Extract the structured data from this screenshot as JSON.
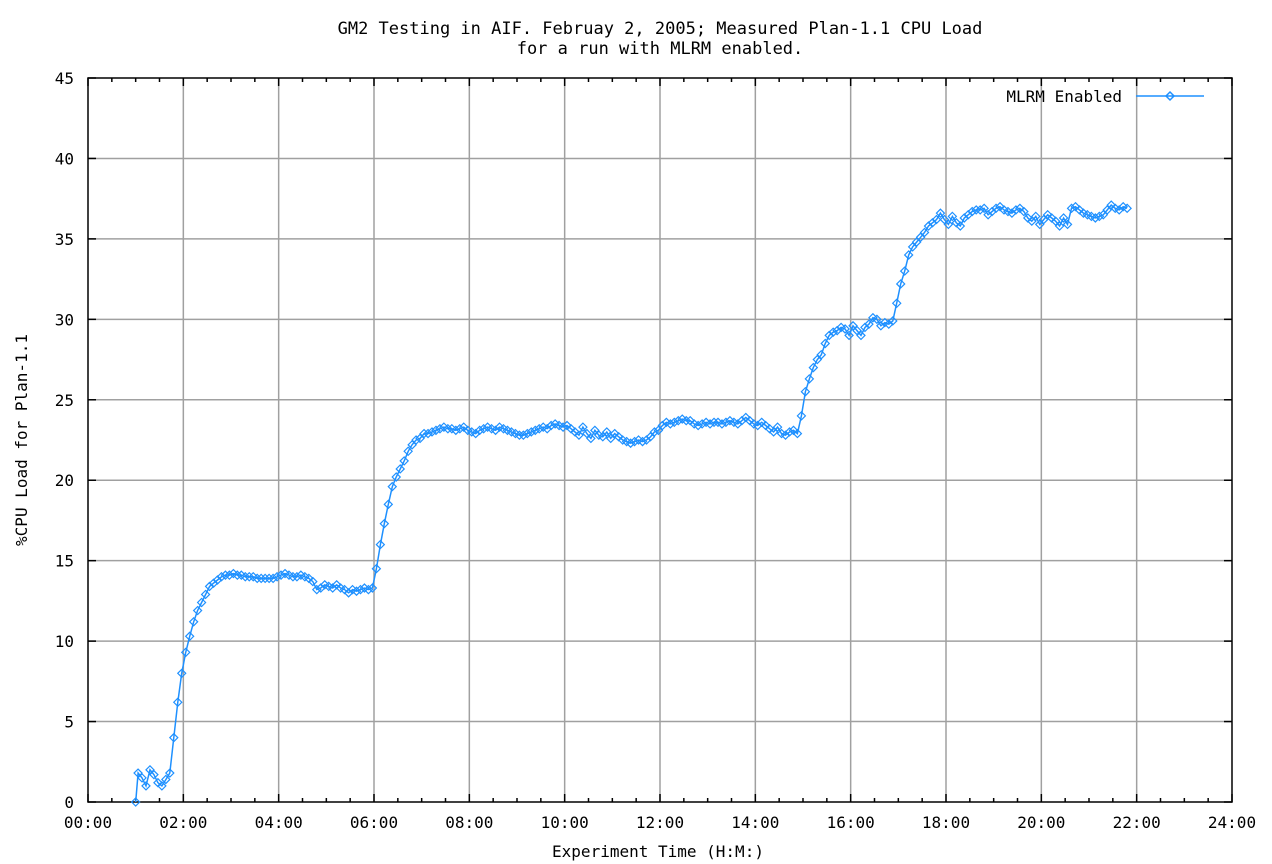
{
  "chart_data": {
    "type": "line",
    "title_line1": "GM2 Testing in AIF. Februay 2, 2005; Measured Plan-1.1 CPU Load",
    "title_line2": "for a run with MLRM enabled.",
    "xlabel": "Experiment Time (H:M:)",
    "ylabel": "%CPU Load for Plan-1.1",
    "xlim": [
      "00:00",
      "24:00"
    ],
    "ylim": [
      0,
      45
    ],
    "x_ticks": [
      "00:00",
      "02:00",
      "04:00",
      "06:00",
      "08:00",
      "10:00",
      "12:00",
      "14:00",
      "16:00",
      "18:00",
      "20:00",
      "22:00",
      "24:00"
    ],
    "y_ticks": [
      "0",
      "5",
      "10",
      "15",
      "20",
      "25",
      "30",
      "35",
      "40",
      "45"
    ],
    "grid": true,
    "legend_position": "top-right",
    "series": [
      {
        "name": "MLRM Enabled",
        "color": "#1e90ff",
        "marker": "diamond",
        "points": [
          [
            "01:00",
            0
          ],
          [
            "01:03",
            1.8
          ],
          [
            "01:08",
            1.5
          ],
          [
            "01:13",
            1.0
          ],
          [
            "01:18",
            2.0
          ],
          [
            "01:23",
            1.7
          ],
          [
            "01:28",
            1.2
          ],
          [
            "01:33",
            1.0
          ],
          [
            "01:38",
            1.4
          ],
          [
            "01:43",
            1.8
          ],
          [
            "01:48",
            4.0
          ],
          [
            "01:53",
            6.2
          ],
          [
            "01:58",
            8.0
          ],
          [
            "02:03",
            9.3
          ],
          [
            "02:08",
            10.3
          ],
          [
            "02:13",
            11.2
          ],
          [
            "02:18",
            11.9
          ],
          [
            "02:23",
            12.4
          ],
          [
            "02:28",
            12.9
          ],
          [
            "02:33",
            13.4
          ],
          [
            "02:38",
            13.6
          ],
          [
            "02:43",
            13.8
          ],
          [
            "02:48",
            14.0
          ],
          [
            "02:53",
            14.1
          ],
          [
            "02:58",
            14.1
          ],
          [
            "03:03",
            14.2
          ],
          [
            "03:08",
            14.1
          ],
          [
            "03:13",
            14.1
          ],
          [
            "03:18",
            14.0
          ],
          [
            "03:23",
            14.0
          ],
          [
            "03:28",
            14.0
          ],
          [
            "03:33",
            13.9
          ],
          [
            "03:38",
            13.9
          ],
          [
            "03:43",
            13.9
          ],
          [
            "03:48",
            13.9
          ],
          [
            "03:53",
            13.9
          ],
          [
            "03:58",
            14.0
          ],
          [
            "04:03",
            14.1
          ],
          [
            "04:08",
            14.2
          ],
          [
            "04:13",
            14.1
          ],
          [
            "04:18",
            14.0
          ],
          [
            "04:23",
            14.0
          ],
          [
            "04:28",
            14.1
          ],
          [
            "04:33",
            14.0
          ],
          [
            "04:38",
            13.9
          ],
          [
            "04:43",
            13.7
          ],
          [
            "04:48",
            13.2
          ],
          [
            "04:53",
            13.3
          ],
          [
            "04:58",
            13.5
          ],
          [
            "05:03",
            13.4
          ],
          [
            "05:08",
            13.3
          ],
          [
            "05:13",
            13.5
          ],
          [
            "05:18",
            13.3
          ],
          [
            "05:23",
            13.2
          ],
          [
            "05:28",
            13.0
          ],
          [
            "05:33",
            13.2
          ],
          [
            "05:38",
            13.1
          ],
          [
            "05:43",
            13.2
          ],
          [
            "05:48",
            13.3
          ],
          [
            "05:53",
            13.2
          ],
          [
            "05:58",
            13.3
          ],
          [
            "06:03",
            14.5
          ],
          [
            "06:08",
            16.0
          ],
          [
            "06:13",
            17.3
          ],
          [
            "06:18",
            18.5
          ],
          [
            "06:23",
            19.6
          ],
          [
            "06:28",
            20.2
          ],
          [
            "06:33",
            20.7
          ],
          [
            "06:38",
            21.2
          ],
          [
            "06:43",
            21.8
          ],
          [
            "06:48",
            22.2
          ],
          [
            "06:53",
            22.5
          ],
          [
            "06:58",
            22.6
          ],
          [
            "07:03",
            22.9
          ],
          [
            "07:08",
            22.9
          ],
          [
            "07:13",
            23.0
          ],
          [
            "07:18",
            23.1
          ],
          [
            "07:23",
            23.2
          ],
          [
            "07:28",
            23.3
          ],
          [
            "07:33",
            23.2
          ],
          [
            "07:38",
            23.2
          ],
          [
            "07:43",
            23.1
          ],
          [
            "07:48",
            23.2
          ],
          [
            "07:53",
            23.3
          ],
          [
            "07:58",
            23.1
          ],
          [
            "08:03",
            23.0
          ],
          [
            "08:08",
            22.9
          ],
          [
            "08:13",
            23.1
          ],
          [
            "08:18",
            23.2
          ],
          [
            "08:23",
            23.3
          ],
          [
            "08:28",
            23.2
          ],
          [
            "08:33",
            23.1
          ],
          [
            "08:38",
            23.3
          ],
          [
            "08:43",
            23.2
          ],
          [
            "08:48",
            23.1
          ],
          [
            "08:53",
            23.0
          ],
          [
            "08:58",
            22.9
          ],
          [
            "09:03",
            22.8
          ],
          [
            "09:08",
            22.8
          ],
          [
            "09:13",
            22.9
          ],
          [
            "09:18",
            23.0
          ],
          [
            "09:23",
            23.1
          ],
          [
            "09:28",
            23.2
          ],
          [
            "09:33",
            23.3
          ],
          [
            "09:38",
            23.2
          ],
          [
            "09:43",
            23.4
          ],
          [
            "09:48",
            23.5
          ],
          [
            "09:53",
            23.4
          ],
          [
            "09:58",
            23.3
          ],
          [
            "10:03",
            23.4
          ],
          [
            "10:08",
            23.2
          ],
          [
            "10:13",
            23.0
          ],
          [
            "10:18",
            22.8
          ],
          [
            "10:23",
            23.3
          ],
          [
            "10:28",
            22.9
          ],
          [
            "10:33",
            22.6
          ],
          [
            "10:38",
            23.1
          ],
          [
            "10:43",
            22.8
          ],
          [
            "10:48",
            22.7
          ],
          [
            "10:53",
            23.0
          ],
          [
            "10:58",
            22.6
          ],
          [
            "11:03",
            22.9
          ],
          [
            "11:08",
            22.7
          ],
          [
            "11:13",
            22.5
          ],
          [
            "11:18",
            22.4
          ],
          [
            "11:23",
            22.3
          ],
          [
            "11:28",
            22.4
          ],
          [
            "11:33",
            22.5
          ],
          [
            "11:38",
            22.4
          ],
          [
            "11:43",
            22.5
          ],
          [
            "11:48",
            22.7
          ],
          [
            "11:53",
            23.0
          ],
          [
            "11:58",
            23.1
          ],
          [
            "12:03",
            23.4
          ],
          [
            "12:08",
            23.6
          ],
          [
            "12:13",
            23.5
          ],
          [
            "12:18",
            23.6
          ],
          [
            "12:23",
            23.7
          ],
          [
            "12:28",
            23.8
          ],
          [
            "12:33",
            23.7
          ],
          [
            "12:38",
            23.7
          ],
          [
            "12:43",
            23.5
          ],
          [
            "12:48",
            23.4
          ],
          [
            "12:53",
            23.5
          ],
          [
            "12:58",
            23.6
          ],
          [
            "13:03",
            23.5
          ],
          [
            "13:08",
            23.6
          ],
          [
            "13:13",
            23.6
          ],
          [
            "13:18",
            23.5
          ],
          [
            "13:23",
            23.6
          ],
          [
            "13:28",
            23.7
          ],
          [
            "13:33",
            23.6
          ],
          [
            "13:38",
            23.5
          ],
          [
            "13:43",
            23.7
          ],
          [
            "13:48",
            23.9
          ],
          [
            "13:53",
            23.7
          ],
          [
            "13:58",
            23.5
          ],
          [
            "14:03",
            23.4
          ],
          [
            "14:08",
            23.6
          ],
          [
            "14:13",
            23.4
          ],
          [
            "14:18",
            23.2
          ],
          [
            "14:23",
            23.0
          ],
          [
            "14:28",
            23.3
          ],
          [
            "14:33",
            22.9
          ],
          [
            "14:38",
            22.8
          ],
          [
            "14:43",
            23.0
          ],
          [
            "14:48",
            23.1
          ],
          [
            "14:53",
            22.9
          ],
          [
            "14:58",
            24.0
          ],
          [
            "15:03",
            25.5
          ],
          [
            "15:08",
            26.3
          ],
          [
            "15:13",
            27.0
          ],
          [
            "15:18",
            27.5
          ],
          [
            "15:23",
            27.8
          ],
          [
            "15:28",
            28.5
          ],
          [
            "15:33",
            29.0
          ],
          [
            "15:38",
            29.2
          ],
          [
            "15:43",
            29.3
          ],
          [
            "15:48",
            29.5
          ],
          [
            "15:53",
            29.4
          ],
          [
            "15:58",
            29.0
          ],
          [
            "16:03",
            29.6
          ],
          [
            "16:08",
            29.3
          ],
          [
            "16:13",
            29.0
          ],
          [
            "16:18",
            29.5
          ],
          [
            "16:23",
            29.7
          ],
          [
            "16:28",
            30.1
          ],
          [
            "16:33",
            30.0
          ],
          [
            "16:38",
            29.6
          ],
          [
            "16:43",
            29.8
          ],
          [
            "16:48",
            29.7
          ],
          [
            "16:53",
            29.9
          ],
          [
            "16:58",
            31.0
          ],
          [
            "17:03",
            32.2
          ],
          [
            "17:08",
            33.0
          ],
          [
            "17:13",
            34.0
          ],
          [
            "17:18",
            34.5
          ],
          [
            "17:23",
            34.8
          ],
          [
            "17:28",
            35.1
          ],
          [
            "17:33",
            35.4
          ],
          [
            "17:38",
            35.8
          ],
          [
            "17:43",
            36.0
          ],
          [
            "17:48",
            36.2
          ],
          [
            "17:53",
            36.6
          ],
          [
            "17:58",
            36.2
          ],
          [
            "18:03",
            35.9
          ],
          [
            "18:08",
            36.4
          ],
          [
            "18:13",
            36.0
          ],
          [
            "18:18",
            35.8
          ],
          [
            "18:23",
            36.3
          ],
          [
            "18:28",
            36.5
          ],
          [
            "18:33",
            36.7
          ],
          [
            "18:38",
            36.8
          ],
          [
            "18:43",
            36.8
          ],
          [
            "18:48",
            36.9
          ],
          [
            "18:53",
            36.5
          ],
          [
            "18:58",
            36.7
          ],
          [
            "19:03",
            36.9
          ],
          [
            "19:08",
            37.0
          ],
          [
            "19:13",
            36.8
          ],
          [
            "19:18",
            36.7
          ],
          [
            "19:23",
            36.6
          ],
          [
            "19:28",
            36.8
          ],
          [
            "19:33",
            36.9
          ],
          [
            "19:38",
            36.7
          ],
          [
            "19:43",
            36.3
          ],
          [
            "19:48",
            36.1
          ],
          [
            "19:53",
            36.4
          ],
          [
            "19:58",
            35.9
          ],
          [
            "20:03",
            36.2
          ],
          [
            "20:08",
            36.5
          ],
          [
            "20:13",
            36.3
          ],
          [
            "20:18",
            36.1
          ],
          [
            "20:23",
            35.8
          ],
          [
            "20:28",
            36.3
          ],
          [
            "20:33",
            35.9
          ],
          [
            "20:38",
            36.9
          ],
          [
            "20:43",
            37.0
          ],
          [
            "20:48",
            36.8
          ],
          [
            "20:53",
            36.6
          ],
          [
            "20:58",
            36.5
          ],
          [
            "21:03",
            36.4
          ],
          [
            "21:08",
            36.3
          ],
          [
            "21:13",
            36.4
          ],
          [
            "21:18",
            36.5
          ],
          [
            "21:23",
            36.8
          ],
          [
            "21:28",
            37.1
          ],
          [
            "21:33",
            36.9
          ],
          [
            "21:38",
            36.8
          ],
          [
            "21:43",
            37.0
          ],
          [
            "21:48",
            36.9
          ]
        ]
      }
    ]
  }
}
